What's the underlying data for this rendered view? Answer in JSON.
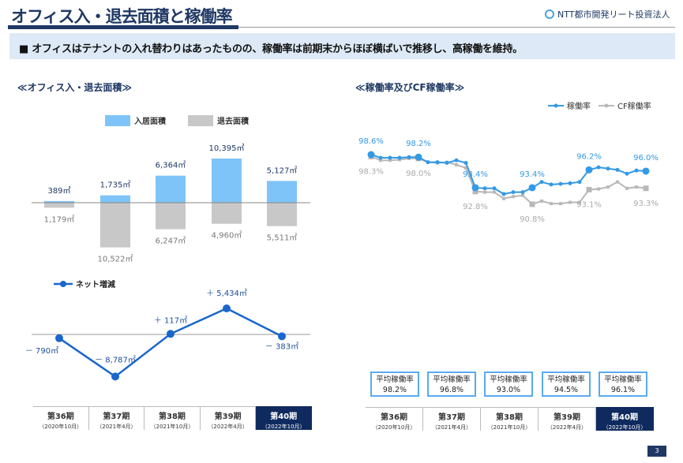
{
  "header": {
    "title": "オフィス入・退去面積と稼働率",
    "logo": "NTT都市開発リート投資法人"
  },
  "banner": "■ オフィスはテナントの入れ替わりはあったものの、稼働率は前期末からほぼ横ばいで推移し、高稼働を維持。",
  "left_section_title": "≪オフィス入・退去面積≫",
  "right_section_title": "≪稼働率及びCF稼働率≫",
  "periods": [
    {
      "label": "第36期",
      "date": "（2020年10月）"
    },
    {
      "label": "第37期",
      "date": "（2021年4月）"
    },
    {
      "label": "第38期",
      "date": "（2021年10月）"
    },
    {
      "label": "第39期",
      "date": "（2022年4月）"
    },
    {
      "label": "第40期",
      "date": "（2022年10月）"
    }
  ],
  "chart_data": [
    {
      "type": "bar",
      "categories": [
        "第36期",
        "第37期",
        "第38期",
        "第39期",
        "第40期"
      ],
      "series": [
        {
          "name": "入居面積",
          "values": [
            389,
            1735,
            6364,
            10395,
            5127
          ],
          "labels": [
            "389㎡",
            "1,735㎡",
            "6,364㎡",
            "10,395㎡",
            "5,127㎡"
          ],
          "color": "#7fc4f8"
        },
        {
          "name": "退去面積",
          "values": [
            -1179,
            -10522,
            -6247,
            -4960,
            -5511
          ],
          "labels": [
            "1,179㎡",
            "10,522㎡",
            "6,247㎡",
            "4,960㎡",
            "5,511㎡"
          ],
          "color": "#c8c8c8"
        }
      ],
      "legend": "top"
    },
    {
      "type": "line",
      "categories": [
        "第36期",
        "第37期",
        "第38期",
        "第39期",
        "第40期"
      ],
      "series": [
        {
          "name": "ネット増減",
          "values": [
            -790,
            -8787,
            117,
            5434,
            -383
          ],
          "labels": [
            "－ 790㎡",
            "－ 8,787㎡",
            "＋ 117㎡",
            "＋ 5,434㎡",
            "－ 383㎡"
          ],
          "color": "#1a66cc"
        }
      ],
      "legend": "top-left"
    },
    {
      "type": "line",
      "series": [
        {
          "name": "稼働率",
          "color": "#3399e6",
          "values": [
            98.6,
            98.1,
            98.1,
            98.1,
            98.2,
            98.2,
            97.4,
            97.4,
            97.3,
            97.7,
            97.3,
            93.4,
            93.3,
            93.3,
            92.4,
            92.7,
            92.7,
            93.4,
            94.3,
            93.9,
            94.0,
            94.1,
            94.3,
            96.2,
            96.6,
            96.4,
            96.2,
            95.6,
            96.1,
            96.0
          ],
          "labels": {
            "0": "98.6%",
            "5": "98.2%",
            "11": "93.4%",
            "17": "93.4%",
            "23": "96.2%",
            "29": "96.0%"
          }
        },
        {
          "name": "CF稼働率",
          "color": "#b8b8b8",
          "values": [
            98.3,
            97.7,
            97.7,
            97.8,
            98.0,
            98.0,
            97.4,
            97.3,
            97.4,
            97.0,
            96.5,
            92.8,
            92.7,
            92.7,
            91.7,
            92.0,
            92.2,
            90.8,
            91.3,
            90.9,
            90.9,
            91.1,
            91.1,
            93.1,
            93.2,
            93.5,
            94.3,
            93.3,
            93.5,
            93.3
          ],
          "labels": {
            "0": "98.3%",
            "5": "98.0%",
            "11": "92.8%",
            "17": "90.8%",
            "23": "93.1%",
            "29": "93.3%"
          }
        }
      ],
      "legend": "top-right"
    }
  ],
  "average_occupancy": [
    {
      "label": "平均稼働率",
      "value": "98.2%"
    },
    {
      "label": "平均稼働率",
      "value": "96.8%"
    },
    {
      "label": "平均稼働率",
      "value": "93.0%"
    },
    {
      "label": "平均稼働率",
      "value": "94.5%"
    },
    {
      "label": "平均稼働率",
      "value": "96.1%"
    }
  ],
  "page_number": "3"
}
